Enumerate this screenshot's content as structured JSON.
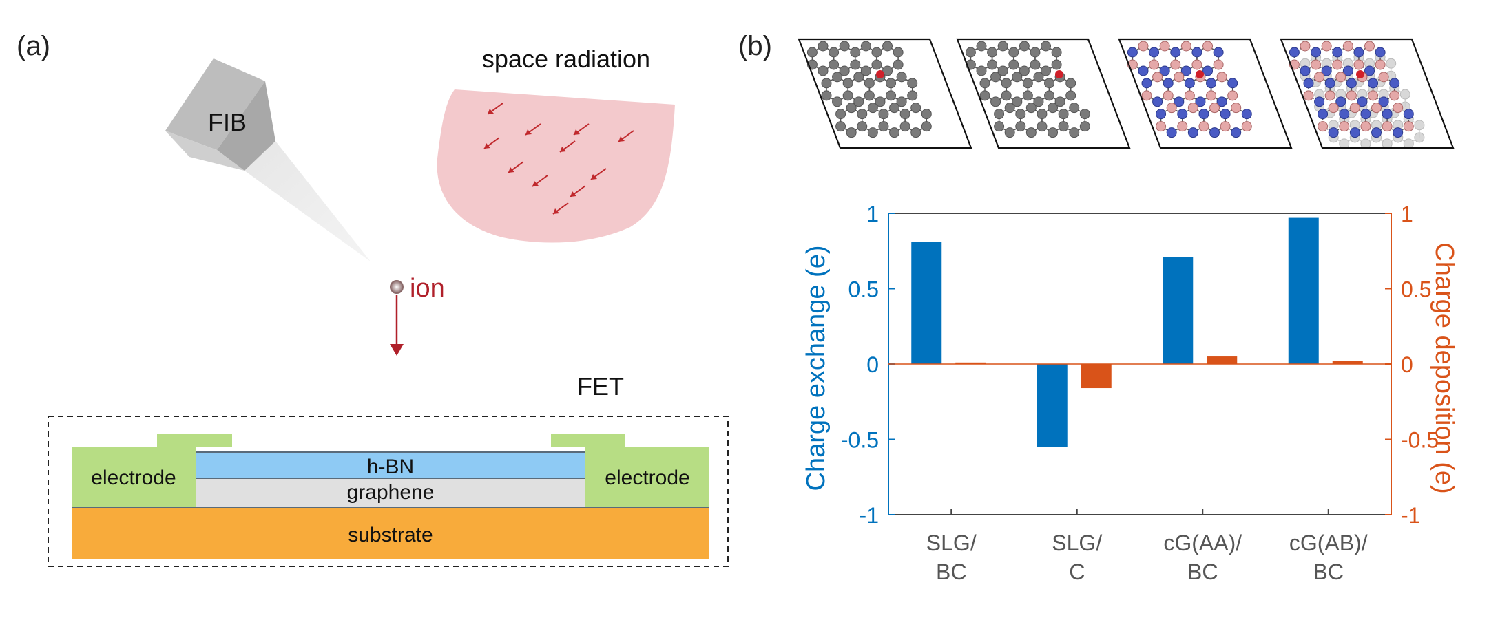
{
  "panel_a": {
    "label": "(a)",
    "fib_label": "FIB",
    "radiation_label": "space radiation",
    "ion_label": "ion",
    "fet_label": "FET",
    "layers": {
      "electrode_left": "electrode",
      "electrode_right": "electrode",
      "hbn": "h-BN",
      "graphene": "graphene",
      "substrate": "substrate"
    }
  },
  "panel_b": {
    "label": "(b)",
    "structures": [
      "SLG/BC",
      "SLG/C",
      "cG(AA)/BC",
      "cG(AB)/BC"
    ]
  },
  "colors": {
    "blue_series": "#0072bd",
    "orange_series": "#d95319",
    "ion_red": "#a1202a",
    "electrode": "#b7dd84",
    "hbn": "#8ecaf4",
    "graphene": "#e0e0e0",
    "substrate": "#f8ab3b",
    "radiation": "#f3c9cc",
    "atom_gray": "#7a7a7a",
    "atom_blue": "#4a5bc4",
    "atom_pink": "#e4a8a8"
  },
  "chart_data": {
    "type": "bar",
    "categories": [
      [
        "SLG/",
        "BC"
      ],
      [
        "SLG/",
        "C"
      ],
      [
        "cG(AA)/",
        "BC"
      ],
      [
        "cG(AB)/",
        "BC"
      ]
    ],
    "series": [
      {
        "name": "Charge exchange",
        "axis": "left",
        "color": "#0072bd",
        "values": [
          0.81,
          -0.55,
          0.71,
          0.97
        ]
      },
      {
        "name": "Charge deposition",
        "axis": "right",
        "color": "#d95319",
        "values": [
          0.01,
          -0.16,
          0.05,
          0.02
        ]
      }
    ],
    "ylabel_left": "Charge exchange (e)",
    "ylabel_right": "Charge deposition (e)",
    "ylim_left": [
      -1,
      1
    ],
    "ylim_right": [
      -1,
      1
    ],
    "yticks_left": [
      "1",
      "0.5",
      "0",
      "-0.5",
      "-1"
    ],
    "yticks_right": [
      "1",
      "0.5",
      "0",
      "-0.5",
      "-1"
    ],
    "grid": false
  }
}
